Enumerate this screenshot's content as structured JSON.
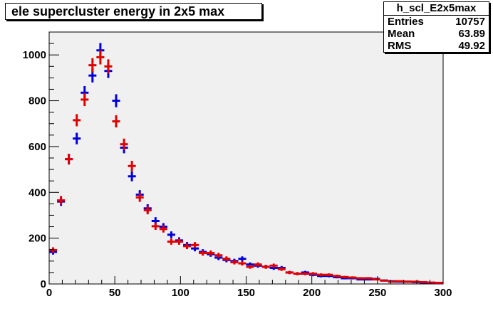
{
  "title": "ele supercluster energy in 2x5 max",
  "stats": {
    "name": "h_scl_E2x5max",
    "rows": [
      {
        "label": "Entries",
        "value": "10757"
      },
      {
        "label": "Mean",
        "value": "63.89"
      },
      {
        "label": "RMS",
        "value": "49.92"
      }
    ]
  },
  "colors": {
    "frame_bg": "#f0f0f0",
    "series_blue": "#0000dd",
    "series_red": "#e00000"
  },
  "chart_data": {
    "type": "scatter",
    "xlim": [
      0,
      300
    ],
    "ylim": [
      0,
      1100
    ],
    "xticks": [
      0,
      50,
      100,
      150,
      200,
      250,
      300
    ],
    "yticks": [
      0,
      200,
      400,
      600,
      800,
      1000
    ],
    "bin_width": 6,
    "x": [
      3,
      9,
      15,
      21,
      27,
      33,
      39,
      45,
      51,
      57,
      63,
      69,
      75,
      81,
      87,
      93,
      99,
      105,
      111,
      117,
      123,
      129,
      135,
      141,
      147,
      153,
      159,
      165,
      171,
      177,
      183,
      189,
      195,
      201,
      207,
      213,
      219,
      225,
      231,
      237,
      243,
      249,
      255,
      261,
      267,
      273,
      279,
      285,
      291,
      297
    ],
    "series": [
      {
        "color": "#0000dd",
        "values": [
          140,
          360,
          545,
          635,
          835,
          910,
          1020,
          930,
          800,
          595,
          470,
          390,
          330,
          275,
          250,
          215,
          190,
          170,
          155,
          140,
          130,
          115,
          105,
          100,
          110,
          85,
          80,
          75,
          70,
          70,
          50,
          45,
          50,
          40,
          35,
          35,
          30,
          25,
          25,
          20,
          20,
          22,
          15,
          12,
          10,
          10,
          8,
          6,
          5,
          4
        ]
      },
      {
        "color": "#e00000",
        "values": [
          148,
          365,
          545,
          715,
          805,
          955,
          990,
          950,
          710,
          610,
          515,
          378,
          322,
          252,
          240,
          185,
          185,
          165,
          170,
          135,
          135,
          125,
          110,
          95,
          90,
          75,
          85,
          75,
          80,
          65,
          50,
          45,
          45,
          45,
          40,
          40,
          35,
          30,
          28,
          25,
          25,
          20,
          15,
          10,
          12,
          10,
          10,
          8,
          6,
          5
        ]
      }
    ]
  }
}
